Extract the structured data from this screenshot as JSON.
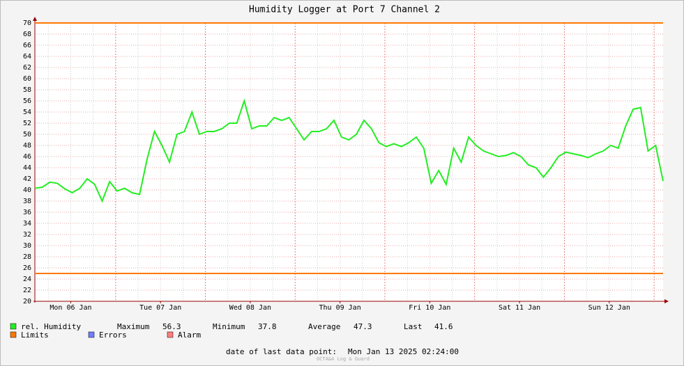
{
  "chart_data": {
    "type": "line",
    "title": "Humidity Logger at Port 7 Channel 2",
    "x": [
      "2025-01-06T02:24",
      "2025-01-06T04:24",
      "2025-01-06T06:24",
      "2025-01-06T08:24",
      "2025-01-06T10:24",
      "2025-01-06T12:24",
      "2025-01-06T14:24",
      "2025-01-06T16:24",
      "2025-01-06T18:24",
      "2025-01-06T20:24",
      "2025-01-06T22:24",
      "2025-01-07T00:24",
      "2025-01-07T02:24",
      "2025-01-07T04:24",
      "2025-01-07T06:24",
      "2025-01-07T08:24",
      "2025-01-07T10:24",
      "2025-01-07T12:24",
      "2025-01-07T14:24",
      "2025-01-07T16:24",
      "2025-01-07T18:24",
      "2025-01-07T20:24",
      "2025-01-07T22:24",
      "2025-01-08T00:24",
      "2025-01-08T02:24",
      "2025-01-08T04:24",
      "2025-01-08T06:24",
      "2025-01-08T08:24",
      "2025-01-08T10:24",
      "2025-01-08T12:24",
      "2025-01-08T14:24",
      "2025-01-08T16:24",
      "2025-01-08T18:24",
      "2025-01-08T20:24",
      "2025-01-08T22:24",
      "2025-01-09T00:24",
      "2025-01-09T02:24",
      "2025-01-09T04:24",
      "2025-01-09T06:24",
      "2025-01-09T08:24",
      "2025-01-09T10:24",
      "2025-01-09T12:24",
      "2025-01-09T14:24",
      "2025-01-09T16:24",
      "2025-01-09T18:24",
      "2025-01-09T20:24",
      "2025-01-09T22:24",
      "2025-01-10T00:24",
      "2025-01-10T02:24",
      "2025-01-10T04:24",
      "2025-01-10T06:24",
      "2025-01-10T08:24",
      "2025-01-10T10:24",
      "2025-01-10T12:24",
      "2025-01-10T14:24",
      "2025-01-10T16:24",
      "2025-01-10T18:24",
      "2025-01-10T20:24",
      "2025-01-10T22:24",
      "2025-01-11T00:24",
      "2025-01-11T02:24",
      "2025-01-11T04:24",
      "2025-01-11T06:24",
      "2025-01-11T08:24",
      "2025-01-11T10:24",
      "2025-01-11T12:24",
      "2025-01-11T14:24",
      "2025-01-11T16:24",
      "2025-01-11T18:24",
      "2025-01-11T20:24",
      "2025-01-11T22:24",
      "2025-01-12T00:24",
      "2025-01-12T02:24",
      "2025-01-12T04:24",
      "2025-01-12T06:24",
      "2025-01-12T08:24",
      "2025-01-12T10:24",
      "2025-01-12T12:24",
      "2025-01-12T14:24",
      "2025-01-12T16:24",
      "2025-01-12T18:24",
      "2025-01-12T20:24",
      "2025-01-12T22:24",
      "2025-01-13T00:24",
      "2025-01-13T02:24"
    ],
    "series": [
      {
        "name": "rel. Humidity",
        "color": "#22ee22",
        "values": [
          40.3,
          40.5,
          41.4,
          41.2,
          40.2,
          39.5,
          40.3,
          42.0,
          41.0,
          38.0,
          41.5,
          39.8,
          40.3,
          39.5,
          39.2,
          45.5,
          50.5,
          48,
          45,
          50,
          50.5,
          54,
          50,
          50.5,
          50.5,
          51,
          52,
          52,
          56.0,
          51,
          51.5,
          51.5,
          53,
          52.5,
          53,
          51,
          49,
          50.5,
          50.5,
          51,
          52.5,
          49.5,
          49,
          50,
          52.5,
          51,
          48.5,
          47.8,
          48.3,
          47.8,
          48.5,
          49.5,
          47.5,
          41.2,
          43.5,
          41,
          47.5,
          45,
          49.5,
          48,
          47,
          46.5,
          46,
          46.2,
          46.7,
          46,
          44.5,
          44,
          42.3,
          44,
          46,
          46.8,
          46.5,
          46.2,
          45.8,
          46.5,
          47,
          48,
          47.5,
          51.5,
          54.5,
          54.8,
          47,
          48,
          41.6
        ]
      }
    ],
    "xlim": [
      "2025-01-06T02:24",
      "2025-01-13T02:24"
    ],
    "xticks": [
      {
        "value": "2025-01-06T12:00",
        "label": "Mon 06 Jan"
      },
      {
        "value": "2025-01-07T12:00",
        "label": "Tue 07 Jan"
      },
      {
        "value": "2025-01-08T12:00",
        "label": "Wed 08 Jan"
      },
      {
        "value": "2025-01-09T12:00",
        "label": "Thu 09 Jan"
      },
      {
        "value": "2025-01-10T12:00",
        "label": "Fri 10 Jan"
      },
      {
        "value": "2025-01-11T12:00",
        "label": "Sat 11 Jan"
      },
      {
        "value": "2025-01-12T12:00",
        "label": "Sun 12 Jan"
      }
    ],
    "ylim": [
      20,
      70
    ],
    "yticks": [
      20,
      22,
      24,
      26,
      28,
      30,
      32,
      34,
      36,
      38,
      40,
      42,
      44,
      46,
      48,
      50,
      52,
      54,
      56,
      58,
      60,
      62,
      64,
      66,
      68,
      70
    ],
    "grid": true,
    "limits": {
      "name": "Limits",
      "color": "#ff7700",
      "values": [
        70,
        25
      ]
    },
    "legend_extra": [
      {
        "name": "Errors",
        "color": "#6f7fff"
      },
      {
        "name": "Alarm",
        "color": "#ff7f7f"
      }
    ],
    "stats": [
      {
        "label": "Maximum",
        "value": 56.3
      },
      {
        "label": "Minimum",
        "value": 37.8
      },
      {
        "label": "Average",
        "value": 47.3
      },
      {
        "label": "Last",
        "value": 41.6
      }
    ],
    "footer": {
      "label": "date of last data point:",
      "value": "Mon Jan 13 2025 02:24:00"
    },
    "watermark": "OCTA&A Log & Guard"
  }
}
